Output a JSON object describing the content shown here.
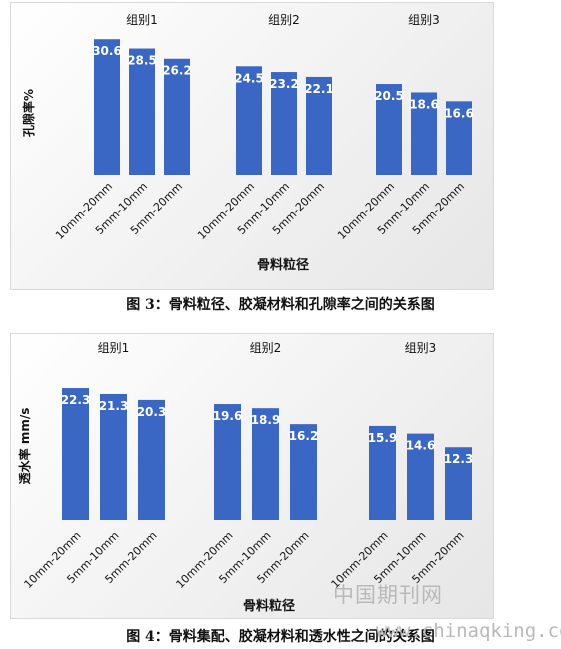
{
  "chart_data": [
    {
      "type": "bar",
      "groups": [
        {
          "name": "组别1",
          "categories": [
            "10mm-20mm",
            "5mm-10mm",
            "5mm-20mm"
          ],
          "values": [
            30.6,
            28.5,
            26.2
          ]
        },
        {
          "name": "组别2",
          "categories": [
            "10mm-20mm",
            "5mm-10mm",
            "5mm-20mm"
          ],
          "values": [
            24.5,
            23.2,
            22.1
          ]
        },
        {
          "name": "组别3",
          "categories": [
            "10mm-20mm",
            "5mm-10mm",
            "5mm-20mm"
          ],
          "values": [
            20.5,
            18.6,
            16.6
          ]
        }
      ],
      "xlabel": "骨料粒径",
      "ylabel": "孔隙率%",
      "ylim": [
        0,
        32
      ],
      "bar_color": "#3a66c4",
      "grid": false,
      "caption": "图 3：骨料粒径、胶凝材料和孔隙率之间的关系图"
    },
    {
      "type": "bar",
      "groups": [
        {
          "name": "组别1",
          "categories": [
            "10mm-20mm",
            "5mm-10mm",
            "5mm-20mm"
          ],
          "values": [
            22.3,
            21.3,
            20.3
          ]
        },
        {
          "name": "组别2",
          "categories": [
            "10mm-20mm",
            "5mm-10mm",
            "5mm-20mm"
          ],
          "values": [
            19.6,
            18.9,
            16.2
          ]
        },
        {
          "name": "组别3",
          "categories": [
            "10mm-20mm",
            "5mm-10mm",
            "5mm-20mm"
          ],
          "values": [
            15.9,
            14.6,
            12.3
          ]
        }
      ],
      "xlabel": "骨料粒径",
      "ylabel": "透水率 mm/s",
      "ylim": [
        0,
        24
      ],
      "bar_color": "#3a66c4",
      "grid": false,
      "caption": "图 4：骨料集配、胶凝材料和透水性之间的关系图"
    }
  ],
  "watermark": {
    "site_cn": "中国期刊网",
    "url": "www.chinaqking.com"
  }
}
